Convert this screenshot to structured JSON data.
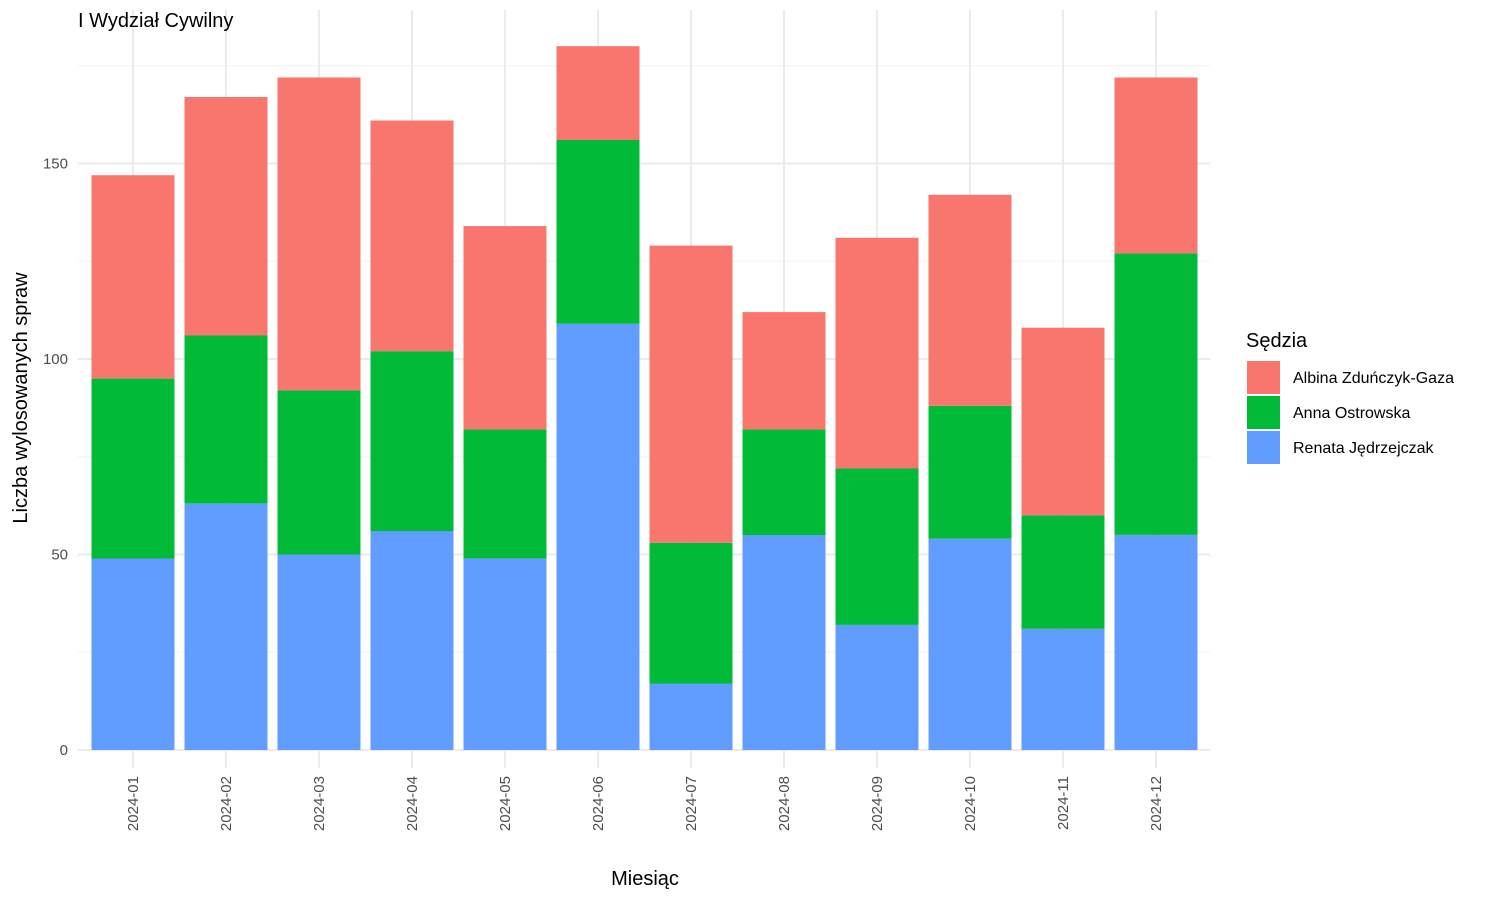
{
  "chart_data": {
    "type": "bar",
    "stacked": true,
    "title": "I Wydział Cywilny",
    "xlabel": "Miesiąc",
    "ylabel": "Liczba wylosowanych spraw",
    "ylim": [
      0,
      180
    ],
    "yticks": [
      0,
      50,
      100,
      150
    ],
    "grid": true,
    "legend_position": "right",
    "legend_title": "Sędzia",
    "categories": [
      "2024-01",
      "2024-02",
      "2024-03",
      "2024-04",
      "2024-05",
      "2024-06",
      "2024-07",
      "2024-08",
      "2024-09",
      "2024-10",
      "2024-11",
      "2024-12"
    ],
    "series": [
      {
        "name": "Renata Jędrzejczak",
        "color": "#619CFF",
        "values": [
          49,
          63,
          50,
          56,
          49,
          109,
          17,
          55,
          32,
          54,
          31,
          55
        ]
      },
      {
        "name": "Anna Ostrowska",
        "color": "#00BA38",
        "values": [
          46,
          43,
          42,
          46,
          33,
          47,
          36,
          27,
          40,
          34,
          29,
          72
        ]
      },
      {
        "name": "Albina Zduńczyk-Gaza",
        "color": "#F8766D",
        "values": [
          52,
          61,
          80,
          59,
          52,
          24,
          76,
          30,
          59,
          54,
          48,
          45
        ]
      }
    ],
    "legend_order": [
      "Albina Zduńczyk-Gaza",
      "Anna Ostrowska",
      "Renata Jędrzejczak"
    ]
  }
}
